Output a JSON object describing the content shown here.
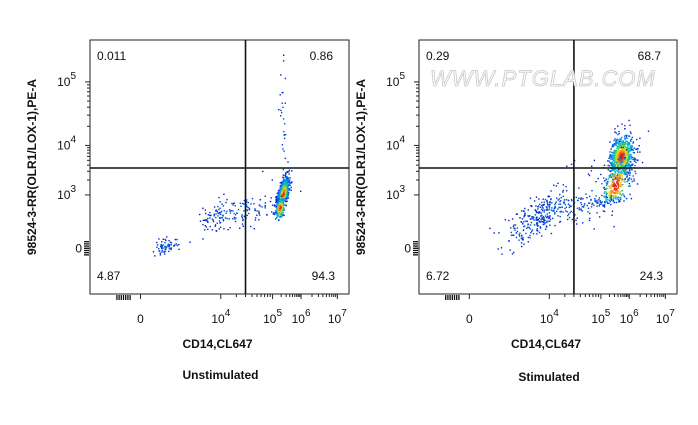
{
  "watermark": "WWW.PTGLAB.COM",
  "chart_data": [
    {
      "type": "scatter",
      "subtype": "flow-cytometry density plot",
      "caption": "Unstimulated",
      "xlabel": "CD14,CL647",
      "ylabel": "98524-3-RR(OLR1/LOX-1),PE-A",
      "x_scale": "biexponential",
      "y_scale": "biexponential",
      "x_ticks": [
        {
          "label": "0",
          "exp": null,
          "value": 0
        },
        {
          "label": "10",
          "exp": "4",
          "value": 10000
        },
        {
          "label": "10",
          "exp": "5",
          "value": 100000
        },
        {
          "label": "10",
          "exp": "6",
          "value": 1000000
        },
        {
          "label": "10",
          "exp": "7",
          "value": 10000000
        }
      ],
      "y_ticks": [
        {
          "label": "0",
          "exp": null,
          "value": 0
        },
        {
          "label": "10",
          "exp": "3",
          "value": 1000
        },
        {
          "label": "10",
          "exp": "4",
          "value": 10000
        },
        {
          "label": "10",
          "exp": "5",
          "value": 100000
        }
      ],
      "gate": {
        "x": 30000,
        "y": 3500
      },
      "quadrants": {
        "upper_left": "0.011",
        "upper_right": "0.86",
        "lower_left": "4.87",
        "lower_right": "94.3"
      },
      "populations": [
        {
          "cx": 5.35,
          "cy": 3.0,
          "sx": 0.1,
          "sy": 0.18,
          "rho": 0.55,
          "n": 900
        },
        {
          "cx": 5.25,
          "cy": 2.3,
          "sx": 0.09,
          "sy": 0.3,
          "rho": 0.3,
          "n": 220
        },
        {
          "cx": 4.2,
          "cy": 2.1,
          "sx": 0.55,
          "sy": 0.5,
          "rho": 0.5,
          "n": 180
        },
        {
          "cx": 1.2,
          "cy": 0.15,
          "sx": 0.3,
          "sy": 0.22,
          "rho": 0.2,
          "n": 70
        },
        {
          "cx": 5.35,
          "cy": 4.3,
          "sx": 0.07,
          "sy": 0.45,
          "rho": 0.0,
          "n": 28
        }
      ],
      "grid": false
    },
    {
      "type": "scatter",
      "subtype": "flow-cytometry density plot",
      "caption": "Stimulated",
      "xlabel": "CD14,CL647",
      "ylabel": "98524-3-RR(OLR1/LOX-1),PE-A",
      "x_scale": "biexponential",
      "y_scale": "biexponential",
      "x_ticks": [
        {
          "label": "0",
          "exp": null,
          "value": 0
        },
        {
          "label": "10",
          "exp": "4",
          "value": 10000
        },
        {
          "label": "10",
          "exp": "5",
          "value": 100000
        },
        {
          "label": "10",
          "exp": "6",
          "value": 1000000
        },
        {
          "label": "10",
          "exp": "7",
          "value": 10000000
        }
      ],
      "y_ticks": [
        {
          "label": "0",
          "exp": null,
          "value": 0
        },
        {
          "label": "10",
          "exp": "3",
          "value": 1000
        },
        {
          "label": "10",
          "exp": "4",
          "value": 10000
        },
        {
          "label": "10",
          "exp": "5",
          "value": 100000
        }
      ],
      "gate": {
        "x": 30000,
        "y": 3500
      },
      "quadrants": {
        "upper_left": "0.29",
        "upper_right": "68.7",
        "lower_left": "6.72",
        "lower_right": "24.3"
      },
      "populations": [
        {
          "cx": 5.7,
          "cy": 3.78,
          "sx": 0.2,
          "sy": 0.2,
          "rho": 0.2,
          "n": 900
        },
        {
          "cx": 5.5,
          "cy": 3.2,
          "sx": 0.28,
          "sy": 0.28,
          "rho": 0.5,
          "n": 320
        },
        {
          "cx": 4.2,
          "cy": 2.3,
          "sx": 0.75,
          "sy": 0.6,
          "rho": 0.6,
          "n": 300
        },
        {
          "cx": 2.8,
          "cy": 1.2,
          "sx": 0.6,
          "sy": 0.6,
          "rho": 0.5,
          "n": 120
        }
      ],
      "grid": false
    }
  ]
}
